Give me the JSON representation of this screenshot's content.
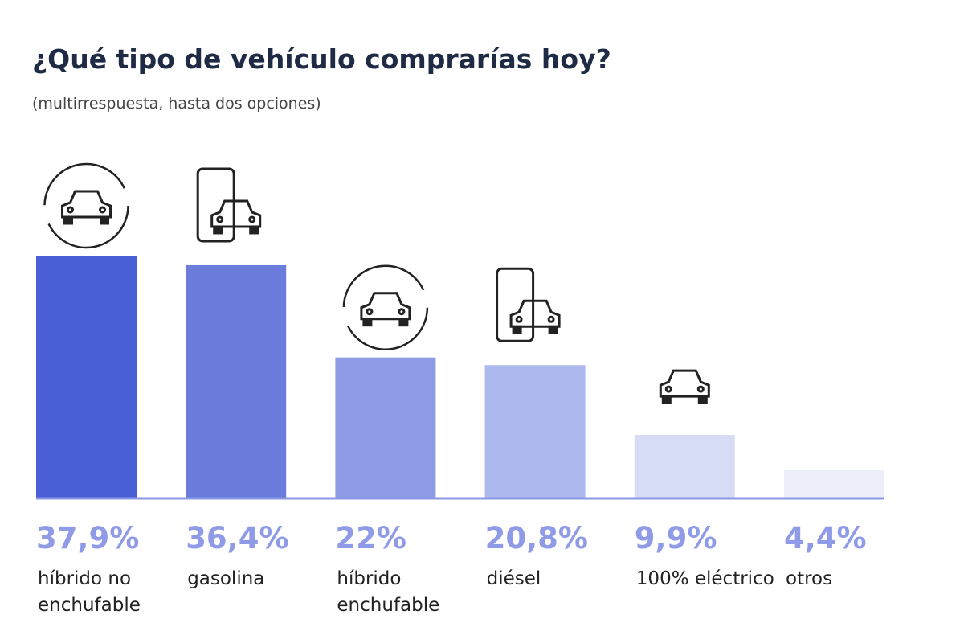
{
  "chart_data": {
    "type": "bar",
    "title": "¿Qué tipo de vehículo comprarías hoy?",
    "subtitle": "(multirrespuesta, hasta dos opciones)",
    "categories": [
      "híbrido no enchufable",
      "gasolina",
      "híbrido enchufable",
      "diésel",
      "100% eléctrico",
      "otros"
    ],
    "values": [
      37.9,
      36.4,
      22,
      20.8,
      9.9,
      4.4
    ],
    "value_labels": [
      "37,9%",
      "36,4%",
      "22%",
      "20,8%",
      "9,9%",
      "4,4%"
    ],
    "colors": [
      "#4a5fd6",
      "#6a7ddd",
      "#8d9be6",
      "#adb8ee",
      "#d6dbf6",
      "#eceefa"
    ],
    "baseline_color": "#8c97e6"
  }
}
